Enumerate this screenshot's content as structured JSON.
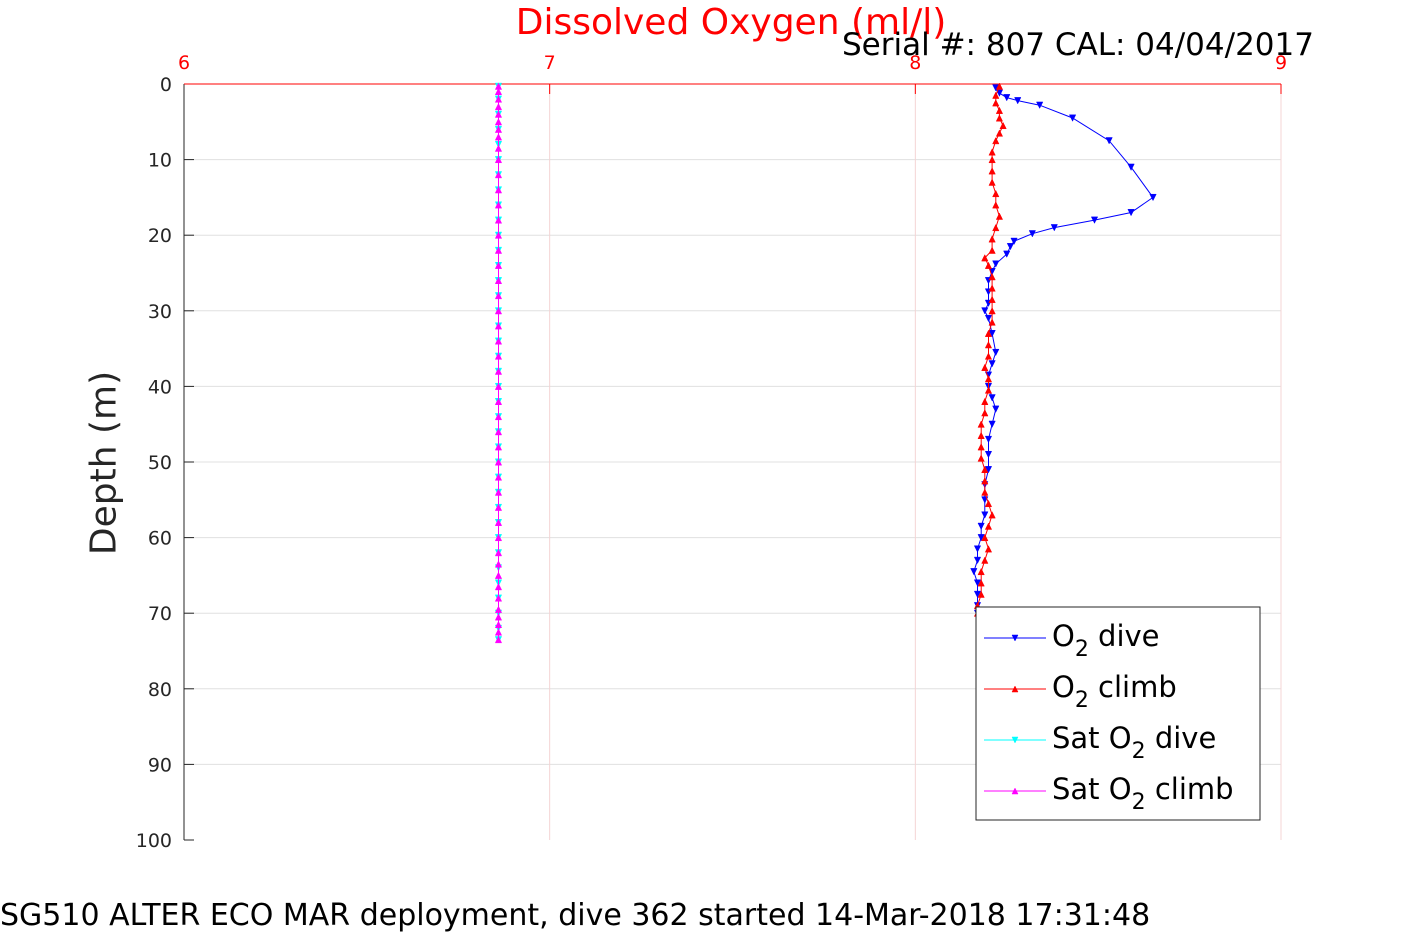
{
  "header": {
    "serial_cal": "Serial #: 807  CAL: 04/04/2017"
  },
  "footer": {
    "text": "SG510 ALTER ECO MAR deployment, dive 362 started 14-Mar-2018 17:31:48"
  },
  "chart_data": {
    "type": "line",
    "title": "Dissolved Oxygen (ml/l)",
    "xlabel": "",
    "ylabel": "Depth (m)",
    "xlim": [
      6,
      9
    ],
    "ylim": [
      0,
      100
    ],
    "y_reversed": true,
    "x_axis_position": "top",
    "x_ticks": [
      "6",
      "7",
      "8",
      "9"
    ],
    "y_ticks": [
      "0",
      "10",
      "20",
      "30",
      "40",
      "50",
      "60",
      "70",
      "80",
      "90",
      "100"
    ],
    "grid": true,
    "legend_position": "bottom-right",
    "series": [
      {
        "name": "O2 dive",
        "legend_main": "O",
        "legend_sub": "2",
        "legend_rest": " dive",
        "color": "#0000ff",
        "marker": "triangle-down",
        "points": [
          [
            8.22,
            0.5
          ],
          [
            8.23,
            1.2
          ],
          [
            8.25,
            1.8
          ],
          [
            8.28,
            2.2
          ],
          [
            8.34,
            2.8
          ],
          [
            8.43,
            4.5
          ],
          [
            8.53,
            7.5
          ],
          [
            8.59,
            11
          ],
          [
            8.65,
            15
          ],
          [
            8.59,
            17
          ],
          [
            8.49,
            18
          ],
          [
            8.38,
            19
          ],
          [
            8.32,
            19.8
          ],
          [
            8.27,
            20.8
          ],
          [
            8.26,
            21.5
          ],
          [
            8.25,
            22.5
          ],
          [
            8.22,
            23.8
          ],
          [
            8.21,
            24.8
          ],
          [
            8.2,
            26
          ],
          [
            8.2,
            27.5
          ],
          [
            8.2,
            29
          ],
          [
            8.19,
            30
          ],
          [
            8.2,
            31
          ],
          [
            8.21,
            33
          ],
          [
            8.22,
            35.5
          ],
          [
            8.21,
            37
          ],
          [
            8.2,
            38.5
          ],
          [
            8.2,
            40
          ],
          [
            8.21,
            41.5
          ],
          [
            8.22,
            43
          ],
          [
            8.21,
            45
          ],
          [
            8.2,
            47
          ],
          [
            8.2,
            49
          ],
          [
            8.2,
            51
          ],
          [
            8.19,
            53
          ],
          [
            8.19,
            55
          ],
          [
            8.19,
            57
          ],
          [
            8.18,
            58.5
          ],
          [
            8.18,
            60
          ],
          [
            8.17,
            61.5
          ],
          [
            8.17,
            63
          ],
          [
            8.16,
            64.5
          ],
          [
            8.17,
            66
          ],
          [
            8.17,
            67.5
          ],
          [
            8.17,
            69
          ],
          [
            8.17,
            70
          ]
        ]
      },
      {
        "name": "O2 climb",
        "legend_main": "O",
        "legend_sub": "2",
        "legend_rest": " climb",
        "color": "#ff0000",
        "marker": "triangle-up",
        "points": [
          [
            8.17,
            70
          ],
          [
            8.17,
            69
          ],
          [
            8.18,
            67.5
          ],
          [
            8.18,
            66
          ],
          [
            8.18,
            64.5
          ],
          [
            8.19,
            63
          ],
          [
            8.2,
            61.5
          ],
          [
            8.19,
            60
          ],
          [
            8.2,
            58.5
          ],
          [
            8.21,
            57
          ],
          [
            8.2,
            55.5
          ],
          [
            8.19,
            54
          ],
          [
            8.19,
            52.5
          ],
          [
            8.19,
            51
          ],
          [
            8.18,
            49.5
          ],
          [
            8.18,
            48
          ],
          [
            8.18,
            46.5
          ],
          [
            8.18,
            45
          ],
          [
            8.19,
            43.5
          ],
          [
            8.19,
            42
          ],
          [
            8.2,
            40.5
          ],
          [
            8.2,
            39
          ],
          [
            8.19,
            37.5
          ],
          [
            8.2,
            36
          ],
          [
            8.2,
            34.5
          ],
          [
            8.2,
            33
          ],
          [
            8.21,
            31.5
          ],
          [
            8.21,
            30
          ],
          [
            8.21,
            28.5
          ],
          [
            8.21,
            27
          ],
          [
            8.21,
            25.5
          ],
          [
            8.2,
            24
          ],
          [
            8.19,
            23
          ],
          [
            8.21,
            22
          ],
          [
            8.21,
            20.5
          ],
          [
            8.22,
            19
          ],
          [
            8.23,
            17.5
          ],
          [
            8.22,
            16
          ],
          [
            8.22,
            14.5
          ],
          [
            8.21,
            13
          ],
          [
            8.21,
            11.5
          ],
          [
            8.21,
            10
          ],
          [
            8.21,
            9
          ],
          [
            8.22,
            7.5
          ],
          [
            8.23,
            6.5
          ],
          [
            8.24,
            5.5
          ],
          [
            8.23,
            4.5
          ],
          [
            8.23,
            3.5
          ],
          [
            8.22,
            2.5
          ],
          [
            8.22,
            1.5
          ],
          [
            8.23,
            0.3
          ]
        ]
      },
      {
        "name": "Sat O2 dive",
        "legend_main": "Sat O",
        "legend_sub": "2",
        "legend_rest": " dive",
        "color": "#00ffff",
        "marker": "triangle-down",
        "points": [
          [
            6.86,
            0.3
          ],
          [
            6.86,
            2
          ],
          [
            6.86,
            4
          ],
          [
            6.86,
            6
          ],
          [
            6.86,
            8
          ],
          [
            6.86,
            10
          ],
          [
            6.86,
            12
          ],
          [
            6.86,
            14
          ],
          [
            6.86,
            16
          ],
          [
            6.86,
            18
          ],
          [
            6.86,
            20
          ],
          [
            6.86,
            22
          ],
          [
            6.86,
            24
          ],
          [
            6.86,
            26
          ],
          [
            6.86,
            28
          ],
          [
            6.86,
            30
          ],
          [
            6.86,
            32
          ],
          [
            6.86,
            34
          ],
          [
            6.86,
            36
          ],
          [
            6.86,
            38
          ],
          [
            6.86,
            40
          ],
          [
            6.86,
            42
          ],
          [
            6.86,
            44
          ],
          [
            6.86,
            46
          ],
          [
            6.86,
            48
          ],
          [
            6.86,
            50
          ],
          [
            6.86,
            52
          ],
          [
            6.86,
            54
          ],
          [
            6.86,
            56
          ],
          [
            6.86,
            58
          ],
          [
            6.86,
            60
          ],
          [
            6.86,
            62
          ],
          [
            6.86,
            64
          ],
          [
            6.86,
            66
          ],
          [
            6.86,
            68
          ],
          [
            6.86,
            70
          ],
          [
            6.86,
            72
          ],
          [
            6.86,
            73.5
          ]
        ]
      },
      {
        "name": "Sat O2 climb",
        "legend_main": "Sat O",
        "legend_sub": "2",
        "legend_rest": " climb",
        "color": "#ff00ff",
        "marker": "triangle-up",
        "points": [
          [
            6.86,
            73.5
          ],
          [
            6.86,
            72.5
          ],
          [
            6.86,
            71.5
          ],
          [
            6.86,
            70.5
          ],
          [
            6.86,
            69.5
          ],
          [
            6.86,
            68
          ],
          [
            6.86,
            66.5
          ],
          [
            6.86,
            65
          ],
          [
            6.86,
            63.5
          ],
          [
            6.86,
            62
          ],
          [
            6.86,
            60
          ],
          [
            6.86,
            58
          ],
          [
            6.86,
            56
          ],
          [
            6.86,
            54
          ],
          [
            6.86,
            52
          ],
          [
            6.86,
            50
          ],
          [
            6.86,
            48
          ],
          [
            6.86,
            46
          ],
          [
            6.86,
            44
          ],
          [
            6.86,
            42
          ],
          [
            6.86,
            40
          ],
          [
            6.86,
            38
          ],
          [
            6.86,
            36
          ],
          [
            6.86,
            34
          ],
          [
            6.86,
            32
          ],
          [
            6.86,
            30
          ],
          [
            6.86,
            28
          ],
          [
            6.86,
            26
          ],
          [
            6.86,
            24
          ],
          [
            6.86,
            22
          ],
          [
            6.86,
            20
          ],
          [
            6.86,
            18
          ],
          [
            6.86,
            16
          ],
          [
            6.86,
            14
          ],
          [
            6.86,
            12
          ],
          [
            6.86,
            10
          ],
          [
            6.86,
            8.5
          ],
          [
            6.86,
            7
          ],
          [
            6.86,
            6
          ],
          [
            6.86,
            5
          ],
          [
            6.86,
            4
          ],
          [
            6.86,
            3
          ],
          [
            6.86,
            2
          ],
          [
            6.86,
            1
          ],
          [
            6.86,
            0.3
          ]
        ]
      }
    ]
  }
}
